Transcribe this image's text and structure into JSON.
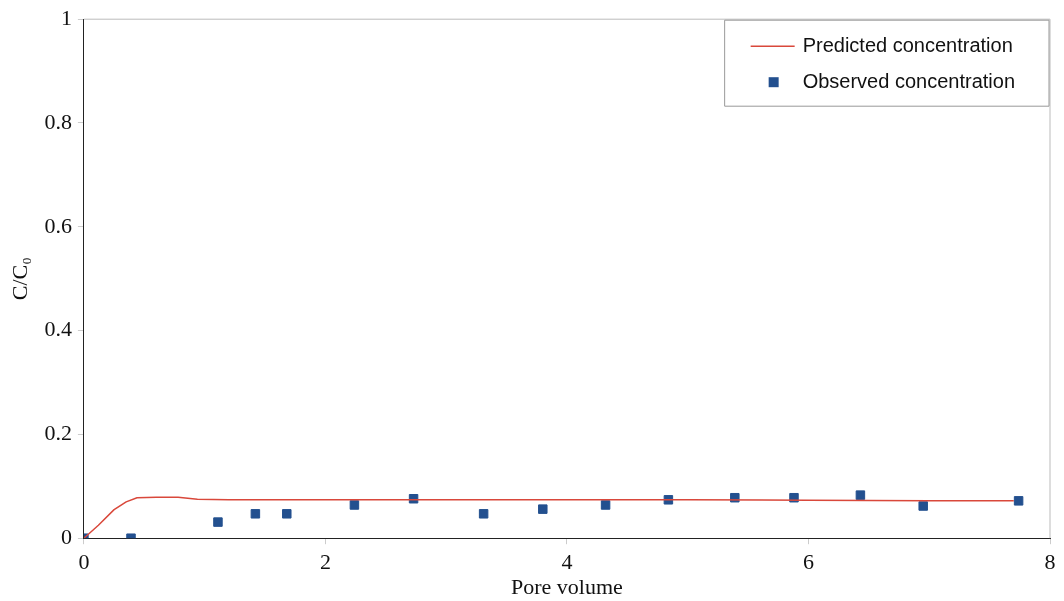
{
  "chart_data": {
    "type": "line",
    "xlabel": "Pore volume",
    "ylabel": "C/C₀",
    "xlim": [
      0,
      8
    ],
    "xticks": [
      0,
      2,
      4,
      6,
      8
    ],
    "ylim": [
      0,
      1
    ],
    "yticks": [
      0,
      0.2,
      0.4,
      0.6,
      0.8,
      1
    ],
    "grid": false,
    "legend": "top right",
    "series": [
      {
        "name": "Predicted concentration",
        "color": "#d9483b",
        "marker": "none",
        "line_style": "solid",
        "x": [
          0,
          0.12,
          0.25,
          0.35,
          0.44,
          0.6,
          0.78,
          0.94,
          1.2,
          2,
          3,
          4,
          5,
          6,
          7,
          7.7
        ],
        "values": [
          0,
          0.025,
          0.055,
          0.07,
          0.078,
          0.079,
          0.079,
          0.075,
          0.074,
          0.074,
          0.074,
          0.074,
          0.074,
          0.073,
          0.072,
          0.072
        ]
      },
      {
        "name": "Observed concentration",
        "type": "scatter",
        "color": "#23508f",
        "marker": "square",
        "x": [
          0,
          0.39,
          1.11,
          1.42,
          1.68,
          2.24,
          2.73,
          3.31,
          3.8,
          4.32,
          4.84,
          5.39,
          5.88,
          6.43,
          6.95,
          7.74
        ],
        "values": [
          0,
          0,
          0.031,
          0.047,
          0.047,
          0.064,
          0.076,
          0.047,
          0.056,
          0.064,
          0.074,
          0.078,
          0.078,
          0.083,
          0.062,
          0.072
        ]
      }
    ]
  }
}
